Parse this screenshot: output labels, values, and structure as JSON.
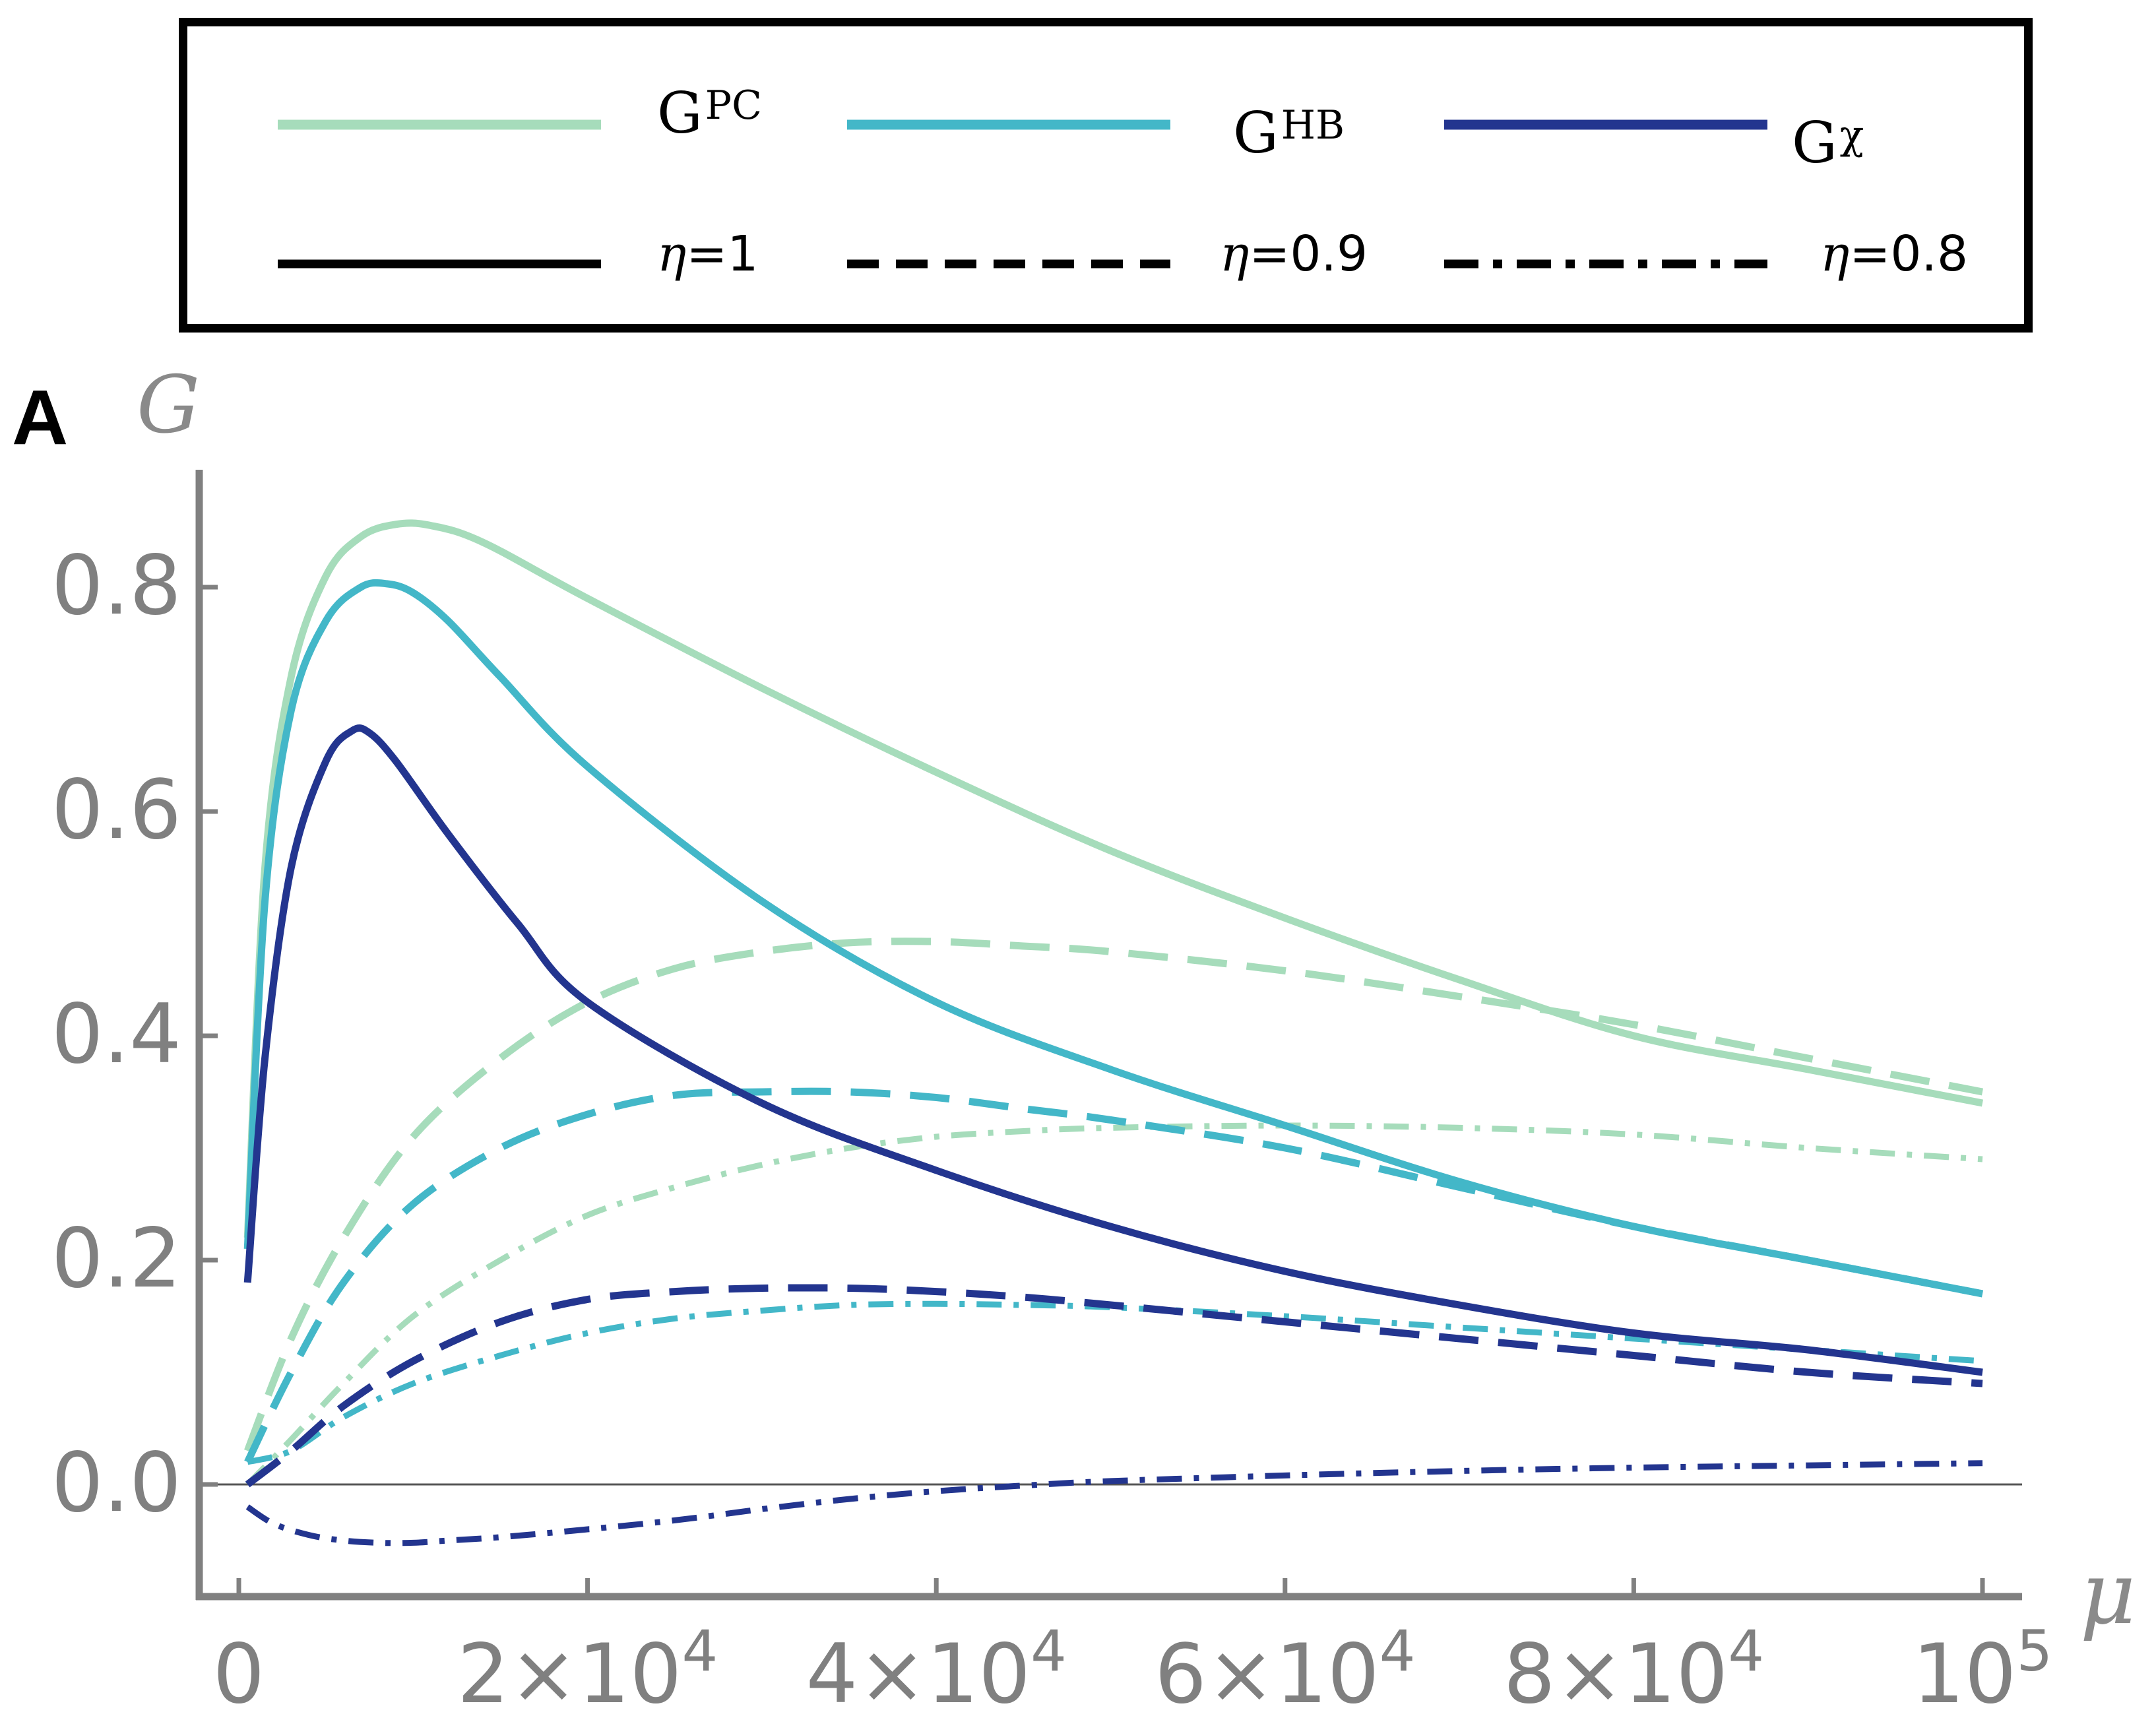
{
  "panel_label": "A",
  "colors": {
    "G_PC": "#a6dcbb",
    "G_HB": "#43b7c8",
    "G_chi": "#23358f",
    "axis": "#808080",
    "legend_line": "#000000"
  },
  "legend": {
    "curves": [
      {
        "base": "G",
        "sup": "PC",
        "color_key": "G_PC"
      },
      {
        "base": "G",
        "sup": "HB",
        "color_key": "G_HB"
      },
      {
        "base": "G",
        "sup": "χ",
        "color_key": "G_chi"
      }
    ],
    "styles": [
      {
        "symbol": "η",
        "value": "=1",
        "dash": "solid"
      },
      {
        "symbol": "η",
        "value": "=0.9",
        "dash": "dashed"
      },
      {
        "symbol": "η",
        "value": "=0.8",
        "dash": "dashdot"
      }
    ]
  },
  "chart_data": {
    "type": "line",
    "title": "",
    "xlabel": "μ",
    "ylabel": "G",
    "xlim": [
      0,
      100000
    ],
    "ylim": [
      -0.1,
      0.9
    ],
    "x_ticks": [
      {
        "value": 0,
        "base": "0",
        "exp": ""
      },
      {
        "value": 20000,
        "base": "2×10",
        "exp": "4"
      },
      {
        "value": 40000,
        "base": "4×10",
        "exp": "4"
      },
      {
        "value": 60000,
        "base": "6×10",
        "exp": "4"
      },
      {
        "value": 80000,
        "base": "8×10",
        "exp": "4"
      },
      {
        "value": 100000,
        "base": "10",
        "exp": "5"
      }
    ],
    "y_ticks": [
      {
        "value": 0.0,
        "label": "0.0"
      },
      {
        "value": 0.2,
        "label": "0.2"
      },
      {
        "value": 0.4,
        "label": "0.4"
      },
      {
        "value": 0.6,
        "label": "0.6"
      },
      {
        "value": 0.8,
        "label": "0.8"
      }
    ],
    "zero_line": true,
    "series": [
      {
        "name": "G^PC, η=1",
        "color_key": "G_PC",
        "dash": "solid",
        "x": [
          500,
          1500,
          3000,
          5000,
          7000,
          9000,
          11000,
          14000,
          20000,
          30000,
          40000,
          50000,
          60000,
          70000,
          80000,
          90000,
          100000
        ],
        "y": [
          0.22,
          0.55,
          0.72,
          0.81,
          0.845,
          0.856,
          0.855,
          0.84,
          0.79,
          0.71,
          0.635,
          0.565,
          0.505,
          0.45,
          0.4,
          0.37,
          0.34
        ]
      },
      {
        "name": "G^HB, η=1",
        "color_key": "G_HB",
        "dash": "solid",
        "x": [
          500,
          1500,
          3000,
          5000,
          7000,
          8500,
          10000,
          12000,
          15000,
          20000,
          30000,
          40000,
          50000,
          60000,
          70000,
          80000,
          90000,
          100000
        ],
        "y": [
          0.21,
          0.52,
          0.69,
          0.77,
          0.8,
          0.803,
          0.795,
          0.77,
          0.72,
          0.64,
          0.52,
          0.43,
          0.37,
          0.32,
          0.27,
          0.23,
          0.2,
          0.17
        ]
      },
      {
        "name": "G^χ, η=1",
        "color_key": "G_chi",
        "dash": "solid",
        "x": [
          500,
          1500,
          3000,
          5000,
          6500,
          7500,
          9000,
          12000,
          16000,
          20000,
          30000,
          40000,
          50000,
          60000,
          70000,
          80000,
          90000,
          100000
        ],
        "y": [
          0.18,
          0.38,
          0.55,
          0.645,
          0.672,
          0.67,
          0.645,
          0.58,
          0.5,
          0.43,
          0.34,
          0.28,
          0.23,
          0.19,
          0.16,
          0.135,
          0.12,
          0.1
        ]
      },
      {
        "name": "G^PC, η=0.9",
        "color_key": "G_PC",
        "dash": "dashed",
        "x": [
          500,
          3000,
          6000,
          10000,
          15000,
          20000,
          25000,
          30000,
          35000,
          40000,
          45000,
          50000,
          60000,
          70000,
          80000,
          90000,
          100000
        ],
        "y": [
          0.03,
          0.13,
          0.22,
          0.31,
          0.38,
          0.43,
          0.46,
          0.475,
          0.483,
          0.484,
          0.48,
          0.475,
          0.458,
          0.435,
          0.41,
          0.38,
          0.35
        ]
      },
      {
        "name": "G^HB, η=0.9",
        "color_key": "G_HB",
        "dash": "dashed",
        "x": [
          500,
          3000,
          6000,
          10000,
          15000,
          20000,
          25000,
          30000,
          35000,
          40000,
          45000,
          50000,
          60000,
          70000,
          80000,
          90000,
          100000
        ],
        "y": [
          0.02,
          0.1,
          0.18,
          0.25,
          0.3,
          0.33,
          0.347,
          0.35,
          0.35,
          0.345,
          0.335,
          0.325,
          0.3,
          0.265,
          0.23,
          0.2,
          0.17
        ]
      },
      {
        "name": "G^χ, η=0.9",
        "color_key": "G_chi",
        "dash": "dashed",
        "x": [
          500,
          3000,
          6000,
          10000,
          15000,
          20000,
          25000,
          30000,
          35000,
          40000,
          45000,
          50000,
          60000,
          70000,
          80000,
          90000,
          100000
        ],
        "y": [
          0.0,
          0.03,
          0.07,
          0.11,
          0.145,
          0.165,
          0.172,
          0.175,
          0.175,
          0.172,
          0.167,
          0.16,
          0.145,
          0.13,
          0.115,
          0.1,
          0.09
        ]
      },
      {
        "name": "G^PC, η=0.8",
        "color_key": "G_PC",
        "dash": "dashdot",
        "x": [
          500,
          3000,
          6000,
          10000,
          15000,
          20000,
          25000,
          30000,
          35000,
          40000,
          45000,
          50000,
          60000,
          70000,
          80000,
          90000,
          100000
        ],
        "y": [
          0.0,
          0.04,
          0.09,
          0.15,
          0.2,
          0.24,
          0.265,
          0.285,
          0.3,
          0.31,
          0.315,
          0.318,
          0.32,
          0.318,
          0.312,
          0.3,
          0.29
        ]
      },
      {
        "name": "G^HB, η=0.8",
        "color_key": "G_HB",
        "dash": "dashdot",
        "x": [
          500,
          3000,
          6000,
          10000,
          15000,
          20000,
          25000,
          30000,
          35000,
          40000,
          45000,
          50000,
          60000,
          70000,
          80000,
          90000,
          100000
        ],
        "y": [
          0.02,
          0.03,
          0.06,
          0.09,
          0.115,
          0.135,
          0.148,
          0.155,
          0.16,
          0.161,
          0.16,
          0.158,
          0.15,
          0.14,
          0.13,
          0.12,
          0.11
        ]
      },
      {
        "name": "G^χ, η=0.8",
        "color_key": "G_chi",
        "dash": "dashdot",
        "x": [
          500,
          2000,
          4000,
          6000,
          8000,
          10000,
          12000,
          15000,
          20000,
          25000,
          30000,
          35000,
          40000,
          45000,
          50000,
          60000,
          70000,
          80000,
          90000,
          100000
        ],
        "y": [
          -0.02,
          -0.035,
          -0.045,
          -0.05,
          -0.052,
          -0.052,
          -0.05,
          -0.047,
          -0.04,
          -0.032,
          -0.022,
          -0.013,
          -0.006,
          -0.001,
          0.003,
          0.008,
          0.012,
          0.015,
          0.017,
          0.019
        ]
      }
    ]
  }
}
